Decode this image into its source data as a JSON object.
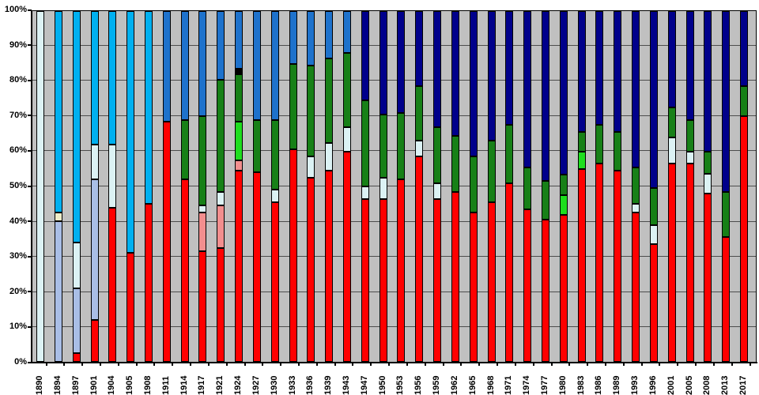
{
  "chart_data": {
    "type": "bar",
    "variant": "stacked-percentage",
    "title": "",
    "xlabel": "",
    "ylabel": "",
    "grid": true,
    "legend": "none",
    "y_axis": {
      "min": 0,
      "max": 100,
      "step": 10,
      "tick_labels": [
        "0%",
        "10%",
        "20%",
        "30%",
        "40%",
        "50%",
        "60%",
        "70%",
        "80%",
        "90%",
        "100%"
      ]
    },
    "x_axis": {
      "label_rotation_degrees": 90,
      "tick_marks_between_categories": true
    },
    "palette": {
      "red": "#FF0000",
      "pink": "#F28E8E",
      "pale": "#DCF2F4",
      "peri": "#A9BEE6",
      "cream": "#EFEDC8",
      "cyan": "#00B0F0",
      "mblue": "#1E72CC",
      "navy": "#00008B",
      "green": "#178017",
      "lime": "#1EDE1E",
      "black": "#000000"
    },
    "palette_semantics": {
      "red": "labor-red",
      "pink": "salmon-pink",
      "pale": "pale-cyan",
      "peri": "light-periwinkle",
      "cream": "cream",
      "cyan": "bright-cyan",
      "mblue": "medium-blue",
      "navy": "dark-navy",
      "green": "dark-green",
      "lime": "bright-green",
      "black": "black"
    },
    "categories": [
      "1890",
      "1894",
      "1897",
      "1901",
      "1904",
      "1905",
      "1908",
      "1911",
      "1914",
      "1917",
      "1921",
      "1924",
      "1927",
      "1930",
      "1933",
      "1936",
      "1939",
      "1943",
      "1947",
      "1950",
      "1953",
      "1956",
      "1959",
      "1962",
      "1965",
      "1968",
      "1971",
      "1974",
      "1977",
      "1980",
      "1983",
      "1986",
      "1989",
      "1993",
      "1996",
      "2001",
      "2005",
      "2008",
      "2013",
      "2017"
    ],
    "bars": [
      {
        "year": "1890",
        "segments": [
          [
            "pale",
            100
          ]
        ]
      },
      {
        "year": "1894",
        "segments": [
          [
            "peri",
            40
          ],
          [
            "cream",
            2.5
          ],
          [
            "cyan",
            57.5
          ]
        ]
      },
      {
        "year": "1897",
        "segments": [
          [
            "red",
            2.5
          ],
          [
            "peri",
            18.5
          ],
          [
            "pale",
            13
          ],
          [
            "cyan",
            66
          ]
        ]
      },
      {
        "year": "1901",
        "segments": [
          [
            "red",
            12
          ],
          [
            "peri",
            40
          ],
          [
            "pale",
            10
          ],
          [
            "cyan",
            38
          ]
        ]
      },
      {
        "year": "1904",
        "segments": [
          [
            "red",
            44
          ],
          [
            "pale",
            18
          ],
          [
            "cyan",
            38
          ]
        ]
      },
      {
        "year": "1905",
        "segments": [
          [
            "red",
            31
          ],
          [
            "cyan",
            69
          ]
        ]
      },
      {
        "year": "1908",
        "segments": [
          [
            "red",
            45
          ],
          [
            "cyan",
            55
          ]
        ]
      },
      {
        "year": "1911",
        "segments": [
          [
            "red",
            68.5
          ],
          [
            "mblue",
            31.5
          ]
        ]
      },
      {
        "year": "1914",
        "segments": [
          [
            "red",
            52
          ],
          [
            "green",
            17
          ],
          [
            "mblue",
            31
          ]
        ]
      },
      {
        "year": "1917",
        "segments": [
          [
            "red",
            31.5
          ],
          [
            "pink",
            11
          ],
          [
            "pale",
            2
          ],
          [
            "green",
            25.5
          ],
          [
            "mblue",
            30
          ]
        ]
      },
      {
        "year": "1921",
        "segments": [
          [
            "red",
            32.5
          ],
          [
            "pink",
            12
          ],
          [
            "pale",
            4
          ],
          [
            "green",
            32
          ],
          [
            "mblue",
            19.5
          ]
        ]
      },
      {
        "year": "1924",
        "segments": [
          [
            "red",
            54.5
          ],
          [
            "pink",
            3
          ],
          [
            "lime",
            11
          ],
          [
            "green",
            13.5
          ],
          [
            "black",
            1.5
          ],
          [
            "mblue",
            16.5
          ]
        ]
      },
      {
        "year": "1927",
        "segments": [
          [
            "red",
            54
          ],
          [
            "green",
            15
          ],
          [
            "mblue",
            31
          ]
        ]
      },
      {
        "year": "1930",
        "segments": [
          [
            "red",
            45.5
          ],
          [
            "pale",
            3.5
          ],
          [
            "green",
            20
          ],
          [
            "mblue",
            31
          ]
        ]
      },
      {
        "year": "1933",
        "segments": [
          [
            "red",
            60.5
          ],
          [
            "green",
            24.5
          ],
          [
            "mblue",
            15
          ]
        ]
      },
      {
        "year": "1936",
        "segments": [
          [
            "red",
            52.5
          ],
          [
            "pale",
            6
          ],
          [
            "green",
            26
          ],
          [
            "mblue",
            15.5
          ]
        ]
      },
      {
        "year": "1939",
        "segments": [
          [
            "red",
            54.5
          ],
          [
            "pale",
            8
          ],
          [
            "green",
            24
          ],
          [
            "mblue",
            13.5
          ]
        ]
      },
      {
        "year": "1943",
        "segments": [
          [
            "red",
            60
          ],
          [
            "pale",
            7
          ],
          [
            "green",
            21
          ],
          [
            "mblue",
            12
          ]
        ]
      },
      {
        "year": "1947",
        "segments": [
          [
            "red",
            46.5
          ],
          [
            "pale",
            3.5
          ],
          [
            "green",
            24.5
          ],
          [
            "navy",
            25.5
          ]
        ]
      },
      {
        "year": "1950",
        "segments": [
          [
            "red",
            46.5
          ],
          [
            "pale",
            6
          ],
          [
            "green",
            18
          ],
          [
            "navy",
            29.5
          ]
        ]
      },
      {
        "year": "1953",
        "segments": [
          [
            "red",
            52
          ],
          [
            "green",
            19
          ],
          [
            "navy",
            29
          ]
        ]
      },
      {
        "year": "1956",
        "segments": [
          [
            "red",
            58.5
          ],
          [
            "pale",
            4.5
          ],
          [
            "green",
            15.5
          ],
          [
            "navy",
            21.5
          ]
        ]
      },
      {
        "year": "1959",
        "segments": [
          [
            "red",
            46.5
          ],
          [
            "pale",
            4.5
          ],
          [
            "green",
            16
          ],
          [
            "navy",
            33
          ]
        ]
      },
      {
        "year": "1962",
        "segments": [
          [
            "red",
            48.5
          ],
          [
            "green",
            16
          ],
          [
            "navy",
            35.5
          ]
        ]
      },
      {
        "year": "1965",
        "segments": [
          [
            "red",
            42.5
          ],
          [
            "green",
            16
          ],
          [
            "navy",
            41.5
          ]
        ]
      },
      {
        "year": "1968",
        "segments": [
          [
            "red",
            45.5
          ],
          [
            "green",
            17.5
          ],
          [
            "navy",
            37
          ]
        ]
      },
      {
        "year": "1971",
        "segments": [
          [
            "red",
            51
          ],
          [
            "green",
            16.5
          ],
          [
            "navy",
            32.5
          ]
        ]
      },
      {
        "year": "1974",
        "segments": [
          [
            "red",
            43.5
          ],
          [
            "green",
            12
          ],
          [
            "navy",
            44.5
          ]
        ]
      },
      {
        "year": "1977",
        "segments": [
          [
            "red",
            40.5
          ],
          [
            "green",
            11
          ],
          [
            "navy",
            48.5
          ]
        ]
      },
      {
        "year": "1980",
        "segments": [
          [
            "red",
            42
          ],
          [
            "lime",
            5.5
          ],
          [
            "green",
            6
          ],
          [
            "navy",
            46.5
          ]
        ]
      },
      {
        "year": "1983",
        "segments": [
          [
            "red",
            55
          ],
          [
            "lime",
            5
          ],
          [
            "green",
            5.5
          ],
          [
            "navy",
            34.5
          ]
        ]
      },
      {
        "year": "1986",
        "segments": [
          [
            "red",
            56.5
          ],
          [
            "green",
            11
          ],
          [
            "navy",
            32.5
          ]
        ]
      },
      {
        "year": "1989",
        "segments": [
          [
            "red",
            54.5
          ],
          [
            "green",
            11
          ],
          [
            "navy",
            34.5
          ]
        ]
      },
      {
        "year": "1993",
        "segments": [
          [
            "red",
            42.5
          ],
          [
            "pale",
            2.5
          ],
          [
            "green",
            10.5
          ],
          [
            "navy",
            44.5
          ]
        ]
      },
      {
        "year": "1996",
        "segments": [
          [
            "red",
            33.5
          ],
          [
            "pale",
            5.5
          ],
          [
            "green",
            10.5
          ],
          [
            "navy",
            50.5
          ]
        ]
      },
      {
        "year": "2001",
        "segments": [
          [
            "red",
            56.5
          ],
          [
            "pale",
            7.5
          ],
          [
            "green",
            8.5
          ],
          [
            "navy",
            27.5
          ]
        ]
      },
      {
        "year": "2005",
        "segments": [
          [
            "red",
            56.5
          ],
          [
            "pale",
            3.5
          ],
          [
            "green",
            9
          ],
          [
            "navy",
            31
          ]
        ]
      },
      {
        "year": "2008",
        "segments": [
          [
            "red",
            48
          ],
          [
            "pale",
            5.5
          ],
          [
            "green",
            6.5
          ],
          [
            "navy",
            40
          ]
        ]
      },
      {
        "year": "2013",
        "segments": [
          [
            "red",
            35.5
          ],
          [
            "green",
            13
          ],
          [
            "navy",
            51.5
          ]
        ]
      },
      {
        "year": "2017",
        "segments": [
          [
            "red",
            70
          ],
          [
            "green",
            8.5
          ],
          [
            "navy",
            21.5
          ]
        ]
      }
    ]
  },
  "style_colors": {
    "page_background": "#FFFFFF",
    "plot_background": "#C0C0C0",
    "gridline": "#4D4D4D",
    "axis": "#000000",
    "bar_border": "#000000",
    "label_text": "#000000"
  }
}
